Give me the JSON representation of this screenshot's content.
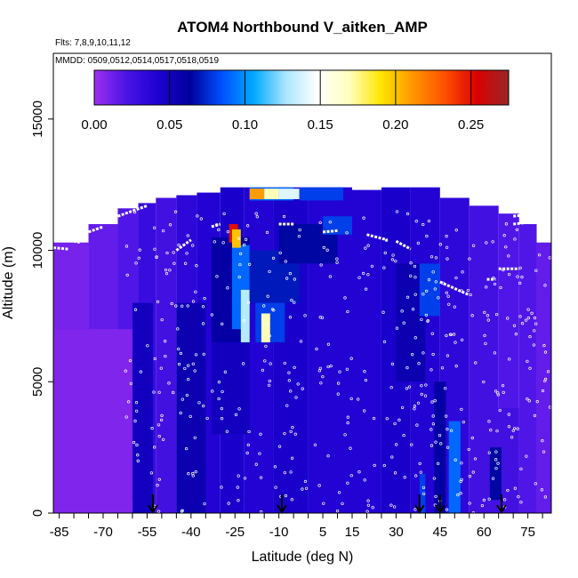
{
  "chart_data": {
    "type": "heatmap",
    "title": "ATOM4 Northbound V_aitken_AMP",
    "subtitle_flights": "Flts: 7,8,9,10,11,12",
    "subtitle_dates": "MMDD: 0509,0512,0514,0517,0518,0519",
    "xlabel": "Latitude (deg N)",
    "ylabel": "Altitude (m)",
    "xlim": [
      -87,
      83
    ],
    "ylim": [
      0,
      17500
    ],
    "x_tick_values": [
      -85,
      -70,
      -55,
      -40,
      -25,
      -10,
      5,
      15,
      30,
      45,
      60,
      75
    ],
    "x_tick_labels": [
      "-85",
      "-70",
      "-55",
      "-40",
      "-25",
      "-10",
      "5",
      "15",
      "30",
      "45",
      "60",
      "75"
    ],
    "y_tick_values": [
      0,
      5000,
      10000,
      15000
    ],
    "y_tick_labels": [
      "0",
      "5000",
      "10000",
      "15000"
    ],
    "colorbar": {
      "range": [
        0,
        0.275
      ],
      "tick_values": [
        0,
        0.05,
        0.1,
        0.15,
        0.2,
        0.25
      ],
      "tick_labels": [
        "0.00",
        "0.05",
        "0.10",
        "0.15",
        "0.20",
        "0.25"
      ],
      "colors": [
        "#9e30f0",
        "#4b14e6",
        "#1e00d2",
        "#00009b",
        "#0050ff",
        "#00aaff",
        "#aae6ff",
        "#ffffff",
        "#ffffbe",
        "#ffe600",
        "#ff9600",
        "#ff5000",
        "#dc0000",
        "#962828"
      ]
    },
    "arrow_latitudes": [
      -53,
      -9,
      38,
      45,
      66
    ],
    "cells": [
      {
        "lat": [
          -87,
          -75
        ],
        "alt": [
          0,
          10300
        ],
        "value": 0.01
      },
      {
        "lat": [
          -75,
          -65
        ],
        "alt": [
          0,
          11000
        ],
        "value": 0.015
      },
      {
        "lat": [
          -65,
          -58
        ],
        "alt": [
          500,
          11600
        ],
        "value": 0.02
      },
      {
        "lat": [
          -58,
          -52
        ],
        "alt": [
          0,
          11800
        ],
        "value": 0.03
      },
      {
        "lat": [
          -52,
          -45
        ],
        "alt": [
          0,
          12000
        ],
        "value": 0.025
      },
      {
        "lat": [
          -45,
          -38
        ],
        "alt": [
          0,
          12100
        ],
        "value": 0.035
      },
      {
        "lat": [
          -38,
          -30
        ],
        "alt": [
          0,
          12200
        ],
        "value": 0.04
      },
      {
        "lat": [
          -30,
          -22
        ],
        "alt": [
          0,
          12400
        ],
        "value": 0.045
      },
      {
        "lat": [
          -22,
          -12
        ],
        "alt": [
          0,
          12400
        ],
        "value": 0.04
      },
      {
        "lat": [
          -12,
          0
        ],
        "alt": [
          0,
          12400
        ],
        "value": 0.045
      },
      {
        "lat": [
          0,
          15
        ],
        "alt": [
          0,
          12400
        ],
        "value": 0.04
      },
      {
        "lat": [
          15,
          25
        ],
        "alt": [
          0,
          12300
        ],
        "value": 0.04
      },
      {
        "lat": [
          25,
          35
        ],
        "alt": [
          0,
          12400
        ],
        "value": 0.045
      },
      {
        "lat": [
          35,
          45
        ],
        "alt": [
          0,
          12400
        ],
        "value": 0.04
      },
      {
        "lat": [
          45,
          55
        ],
        "alt": [
          0,
          12000
        ],
        "value": 0.035
      },
      {
        "lat": [
          55,
          65
        ],
        "alt": [
          0,
          11700
        ],
        "value": 0.025
      },
      {
        "lat": [
          65,
          72
        ],
        "alt": [
          0,
          11400
        ],
        "value": 0.02
      },
      {
        "lat": [
          72,
          78
        ],
        "alt": [
          0,
          11000
        ],
        "value": 0.02
      },
      {
        "lat": [
          78,
          83
        ],
        "alt": [
          0,
          10300
        ],
        "value": 0.015
      },
      {
        "lat": [
          -87,
          -60
        ],
        "alt": [
          0,
          7000
        ],
        "value": 0.008
      },
      {
        "lat": [
          -33,
          -20
        ],
        "alt": [
          6500,
          10500
        ],
        "value": 0.06
      },
      {
        "lat": [
          -26,
          -20
        ],
        "alt": [
          7000,
          10200
        ],
        "value": 0.09
      },
      {
        "lat": [
          -23,
          -20
        ],
        "alt": [
          6500,
          8500
        ],
        "value": 0.13
      },
      {
        "lat": [
          -27,
          -24
        ],
        "alt": [
          10300,
          11000
        ],
        "value": 0.25
      },
      {
        "lat": [
          -26,
          -23
        ],
        "alt": [
          10100,
          10800
        ],
        "value": 0.2
      },
      {
        "lat": [
          -20,
          -5
        ],
        "alt": [
          11900,
          12400
        ],
        "value": 0.09
      },
      {
        "lat": [
          -20,
          -15
        ],
        "alt": [
          11950,
          12350
        ],
        "value": 0.21
      },
      {
        "lat": [
          -15,
          -10
        ],
        "alt": [
          11950,
          12350
        ],
        "value": 0.17
      },
      {
        "lat": [
          -10,
          -3
        ],
        "alt": [
          11950,
          12350
        ],
        "value": 0.14
      },
      {
        "lat": [
          -3,
          12
        ],
        "alt": [
          11900,
          12400
        ],
        "value": 0.08
      },
      {
        "lat": [
          -20,
          -3
        ],
        "alt": [
          8000,
          10000
        ],
        "value": 0.07
      },
      {
        "lat": [
          -18,
          -8
        ],
        "alt": [
          6500,
          8000
        ],
        "value": 0.08
      },
      {
        "lat": [
          -16,
          -13
        ],
        "alt": [
          6500,
          7600
        ],
        "value": 0.17
      },
      {
        "lat": [
          -10,
          10
        ],
        "alt": [
          9500,
          11000
        ],
        "value": 0.065
      },
      {
        "lat": [
          5,
          15
        ],
        "alt": [
          10600,
          11300
        ],
        "value": 0.08
      },
      {
        "lat": [
          -33,
          -20
        ],
        "alt": [
          3000,
          6500
        ],
        "value": 0.05
      },
      {
        "lat": [
          -45,
          -35
        ],
        "alt": [
          0,
          8000
        ],
        "value": 0.055
      },
      {
        "lat": [
          -60,
          -53
        ],
        "alt": [
          0,
          8000
        ],
        "value": 0.05
      },
      {
        "lat": [
          30,
          40
        ],
        "alt": [
          5000,
          9500
        ],
        "value": 0.055
      },
      {
        "lat": [
          38,
          45
        ],
        "alt": [
          7500,
          9500
        ],
        "value": 0.08
      },
      {
        "lat": [
          43,
          47
        ],
        "alt": [
          0,
          5000
        ],
        "value": 0.06
      },
      {
        "lat": [
          48,
          52
        ],
        "alt": [
          0,
          3500
        ],
        "value": 0.09
      },
      {
        "lat": [
          60,
          72
        ],
        "alt": [
          0,
          4000
        ],
        "value": 0.025
      },
      {
        "lat": [
          62,
          66
        ],
        "alt": [
          500,
          2500
        ],
        "value": 0.065
      },
      {
        "lat": [
          38,
          40
        ],
        "alt": [
          0,
          1500
        ],
        "value": 0.08
      }
    ],
    "flight_track": [
      {
        "lat": [
          -87,
          -82
        ],
        "alt": [
          10100,
          10050
        ]
      },
      {
        "lat": [
          -80,
          -78
        ],
        "alt": [
          10350,
          10300
        ]
      },
      {
        "lat": [
          -75,
          -70
        ],
        "alt": [
          10700,
          10900
        ]
      },
      {
        "lat": [
          -65,
          -55
        ],
        "alt": [
          11300,
          11700
        ]
      },
      {
        "lat": [
          -45,
          -40
        ],
        "alt": [
          10000,
          10400
        ]
      },
      {
        "lat": [
          -33,
          -30
        ],
        "alt": [
          10900,
          11000
        ]
      },
      {
        "lat": [
          -10,
          -5
        ],
        "alt": [
          11000,
          11000
        ]
      },
      {
        "lat": [
          5,
          10
        ],
        "alt": [
          10700,
          10750
        ]
      },
      {
        "lat": [
          20,
          27
        ],
        "alt": [
          10600,
          10400
        ]
      },
      {
        "lat": [
          30,
          35
        ],
        "alt": [
          10350,
          10050
        ]
      },
      {
        "lat": [
          45,
          55
        ],
        "alt": [
          8800,
          8300
        ]
      },
      {
        "lat": [
          70,
          78
        ],
        "alt": [
          11300,
          11400
        ]
      },
      {
        "lat": [
          70,
          78
        ],
        "alt": [
          11000,
          11100
        ]
      },
      {
        "lat": [
          65,
          72
        ],
        "alt": [
          9300,
          9300
        ]
      },
      {
        "lat": [
          61,
          64
        ],
        "alt": [
          8900,
          8900
        ]
      }
    ]
  }
}
